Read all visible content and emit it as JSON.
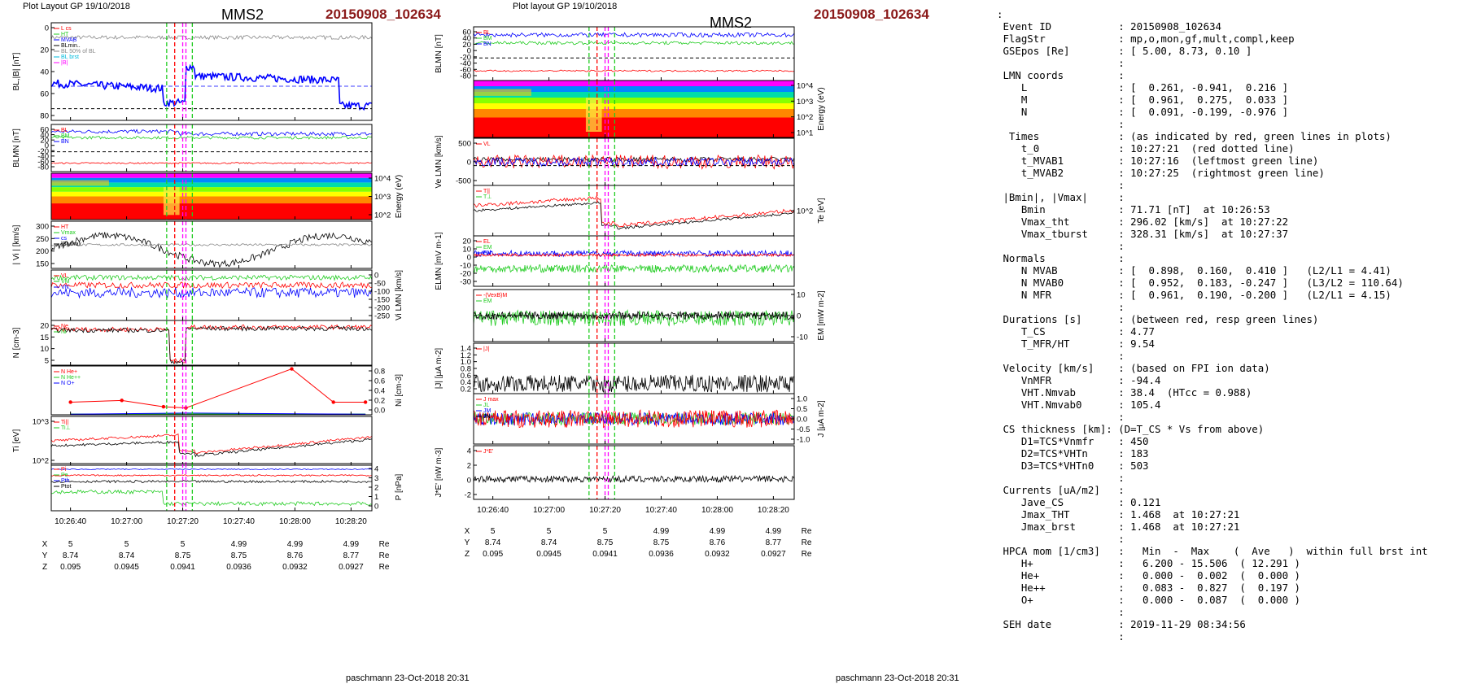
{
  "left": {
    "layout": "Plot Layout GP 19/10/2018",
    "title": "MMS2",
    "event": "20150908_102634",
    "footer": "paschmann 23-Oct-2018 20:31",
    "xticks": [
      "10:26:40",
      "10:27:00",
      "10:27:20",
      "10:27:40",
      "10:28:00",
      "10:28:20"
    ],
    "eph": {
      "X": [
        "5",
        "5",
        "5",
        "4.99",
        "4.99",
        "4.99"
      ],
      "Y": [
        "8.74",
        "8.74",
        "8.75",
        "8.75",
        "8.76",
        "8.77"
      ],
      "Z": [
        "0.095",
        "0.0945",
        "0.0941",
        "0.0936",
        "0.0932",
        "0.0927"
      ],
      "unit": "Re"
    }
  },
  "right": {
    "layout": "Plot layout GP 19/10/2018",
    "title": "MMS2",
    "event": "20150908_102634",
    "footer": "paschmann 23-Oct-2018 20:31",
    "xticks": [
      "10:26:40",
      "10:27:00",
      "10:27:20",
      "10:27:40",
      "10:28:00",
      "10:28:20"
    ],
    "eph": {
      "X": [
        "5",
        "5",
        "5",
        "4.99",
        "4.99",
        "4.99"
      ],
      "Y": [
        "8.74",
        "8.74",
        "8.75",
        "8.75",
        "8.76",
        "8.77"
      ],
      "Z": [
        "0.095",
        "0.0945",
        "0.0941",
        "0.0936",
        "0.0932",
        "0.0927"
      ],
      "unit": "Re"
    }
  },
  "colors": {
    "red": "#ff0000",
    "green": "#22cc22",
    "blue": "#0000ff",
    "black": "#000000",
    "gray": "#888888",
    "magenta": "#ff00ff",
    "cyan": "#00bbdd",
    "darkred": "#8b1a1a"
  },
  "chart_data": [
    {
      "type": "line",
      "ylabel": "BL,|B| [nT]",
      "yticks": [
        "0",
        "20",
        "40",
        "60",
        "80"
      ],
      "ylim": [
        -12,
        92
      ],
      "legend": [
        "L cs",
        "HT",
        "MVAB",
        "BLmin..",
        "BL 50% of BL",
        "BL brst",
        "|B|"
      ]
    },
    {
      "type": "line",
      "ylabel": "BLMN [nT]",
      "yticks": [
        "60",
        "40",
        "20",
        "0",
        "-20",
        "-40",
        "-60",
        "-80"
      ],
      "ylim": [
        -85,
        62
      ],
      "legend": [
        "BL",
        "BM",
        "BN"
      ]
    },
    {
      "type": "heatmap",
      "ylabel": "Energy (eV)",
      "yticks": [
        "10^4",
        "10^3",
        "10^2"
      ],
      "ylim": [
        1,
        4.5
      ]
    },
    {
      "type": "line",
      "ylabel": "| Vi | [km/s]",
      "yticks": [
        "300",
        "250",
        "200",
        "150"
      ],
      "ylim": [
        110,
        330
      ],
      "legend": [
        "HT",
        "Vmax",
        "cs",
        "|B|vmax"
      ]
    },
    {
      "type": "line",
      "ylabel": "Vi LMN [km/s]",
      "yticks": [
        "0",
        "-50",
        "-100",
        "-150",
        "-200",
        "-250"
      ],
      "ylim": [
        -280,
        0
      ],
      "legend": [
        "VL",
        "VM",
        "VN"
      ]
    },
    {
      "type": "line",
      "ylabel": "N [cm-3]",
      "yticks": [
        "20",
        "15",
        "10",
        "5"
      ],
      "ylim": [
        2,
        23
      ],
      "legend": [
        "Ne",
        "Ni"
      ]
    },
    {
      "type": "line",
      "ylabel": "Ni [cm-3]",
      "yticks": [
        "0.8",
        "0.6",
        "0.4",
        "0.2",
        "0.0"
      ],
      "ylim": [
        0,
        0.85
      ],
      "legend": [
        "N He+",
        "N He++",
        "N O+"
      ],
      "series": [
        {
          "name": "N He++",
          "x": [
            "10:26:47",
            "10:27:00",
            "10:27:10",
            "10:27:16",
            "10:27:44",
            "10:28:00",
            "10:28:16"
          ],
          "values": [
            0.22,
            0.25,
            0.14,
            0.12,
            0.8,
            0.22,
            0.22
          ]
        },
        {
          "name": "N He+",
          "x": [
            "10:26:47",
            "10:27:16",
            "10:28:16"
          ],
          "values": [
            0.0,
            0.0,
            0.0
          ]
        },
        {
          "name": "N O+",
          "x": [
            "10:26:47",
            "10:27:16",
            "10:28:16"
          ],
          "values": [
            0.01,
            0.03,
            0.01
          ]
        }
      ]
    },
    {
      "type": "line",
      "ylabel": "Ti [eV]",
      "yticks": [
        "10^3",
        "10^2"
      ],
      "ylim": [
        1.7,
        3.25
      ],
      "legend": [
        "Ti||",
        "Ti⊥"
      ]
    },
    {
      "type": "line",
      "ylabel": "P [nPa]",
      "yticks": [
        "4",
        "3",
        "2",
        "1",
        "0"
      ],
      "ylim": [
        0,
        4
      ],
      "legend": [
        "Pi",
        "Pe",
        "Pth",
        "Ptot"
      ]
    },
    {
      "type": "line",
      "ylabel": "BLMN [nT]",
      "yticks": [
        "60",
        "40",
        "20",
        "0",
        "-20",
        "-40",
        "-60",
        "-80"
      ],
      "ylim": [
        -85,
        62
      ],
      "legend": [
        "BL",
        "BM",
        "BN"
      ]
    },
    {
      "type": "heatmap",
      "ylabel": "Energy (eV)",
      "yticks": [
        "10^4",
        "10^3",
        "10^2",
        "10^1"
      ],
      "ylim": [
        1,
        4.5
      ]
    },
    {
      "type": "line",
      "ylabel": "Ve LMN [km/s]",
      "yticks": [
        "500",
        "0",
        "-500"
      ],
      "ylim": [
        -800,
        700
      ],
      "legend": [
        "VL"
      ]
    },
    {
      "type": "line",
      "ylabel": "Te [eV]",
      "yticks": [
        "10^2"
      ],
      "ylim": [
        1.4,
        2.25
      ],
      "legend": [
        "T||",
        "T⊥"
      ]
    },
    {
      "type": "line",
      "ylabel": "ELMN [mV m-1]",
      "yticks": [
        "20",
        "10",
        "0",
        "-10",
        "-20",
        "-30"
      ],
      "ylim": [
        -38,
        22
      ],
      "legend": [
        "EL",
        "EM",
        "EN"
      ]
    },
    {
      "type": "line",
      "ylabel": "EM [mW m-2]",
      "yticks": [
        "10",
        "0",
        "-10"
      ],
      "ylim": [
        -16,
        16
      ],
      "legend": [
        "-(VexB)M",
        "EM"
      ]
    },
    {
      "type": "line",
      "ylabel": "|J| [μA m-2]",
      "yticks": [
        "1.4",
        "1.2",
        "1.0",
        "0.8",
        "0.6",
        "0.4",
        "0.2"
      ],
      "ylim": [
        0.1,
        1.45
      ],
      "legend": [
        "|J|"
      ]
    },
    {
      "type": "line",
      "ylabel": "J [μA m-2]",
      "yticks": [
        "1.0",
        "0.5",
        "0.0",
        "-0.5",
        "-1.0"
      ],
      "ylim": [
        -1.2,
        1.2
      ],
      "legend": [
        "J max",
        "JL",
        "JM",
        "JN"
      ]
    },
    {
      "type": "line",
      "ylabel": "J*E' [nW m-3]",
      "yticks": [
        "4",
        "2",
        "0",
        "-2"
      ],
      "ylim": [
        -3,
        5
      ],
      "legend": [
        "J*E'"
      ]
    }
  ],
  "summary": [
    ":",
    " Event ID           : 20150908_102634",
    " FlagStr            : mp,o,mon,gf,mult,compl,keep",
    " GSEpos [Re]        : [ 5.00, 8.73, 0.10 ]",
    "                    :",
    " LMN coords         :",
    "    L               : [  0.261, -0.941,  0.216 ]",
    "    M               : [  0.961,  0.275,  0.033 ]",
    "    N               : [  0.091, -0.199, -0.976 ]",
    "                    :",
    "  Times             : (as indicated by red, green lines in plots)",
    "    t_0             : 10:27:21  (red dotted line)",
    "    t_MVAB1         : 10:27:16  (leftmost green line)",
    "    t_MVAB2         : 10:27:25  (rightmost green line)",
    "                    :",
    " |Bmin|, |Vmax|     :",
    "    Bmin            : 71.71 [nT]  at 10:26:53",
    "    Vmax_tht        : 296.02 [km/s]  at 10:27:22",
    "    Vmax_tburst     : 328.31 [km/s]  at 10:27:37",
    "                    :",
    " Normals            :",
    "    N MVAB          : [  0.898,  0.160,  0.410 ]   (L2/L1 = 4.41)",
    "    N MVAB0         : [  0.952,  0.183, -0.247 ]   (L3/L2 = 110.64)",
    "    N MFR           : [  0.961,  0.190, -0.200 ]   (L2/L1 = 4.15)",
    "                    :",
    " Durations [s]      : (between red, resp green lines)",
    "    T_CS            : 4.77",
    "    T_MFR/HT        : 9.54",
    "                    :",
    " Velocity [km/s]    : (based on FPI ion data)",
    "    VnMFR           : -94.4",
    "    VHT.Nmvab       : 38.4  (HTcc = 0.988)",
    "    VHT.Nmvab0      : 105.4",
    "                    :",
    " CS thickness [km]: (D=T_CS * Vs from above)",
    "    D1=TCS*Vnmfr    : 450",
    "    D2=TCS*VHTn     : 183",
    "    D3=TCS*VHTn0    : 503",
    "                    :",
    " Currents [uA/m2]   :",
    "    Jave_CS         : 0.121",
    "    Jmax_THT        : 1.468  at 10:27:21",
    "    Jmax_brst       : 1.468  at 10:27:21",
    "                    :",
    " HPCA mom [1/cm3]   :   Min  -  Max    (  Ave   )  within full brst int",
    "    H+              :   6.200 - 15.506  ( 12.291 )",
    "    He+             :   0.000 -  0.002  (  0.000 )",
    "    He++            :   0.083 -  0.827  (  0.197 )",
    "    O+              :   0.000 -  0.087  (  0.000 )",
    "                    :",
    " SEH date           : 2019-11-29 08:34:56",
    "                    :"
  ]
}
